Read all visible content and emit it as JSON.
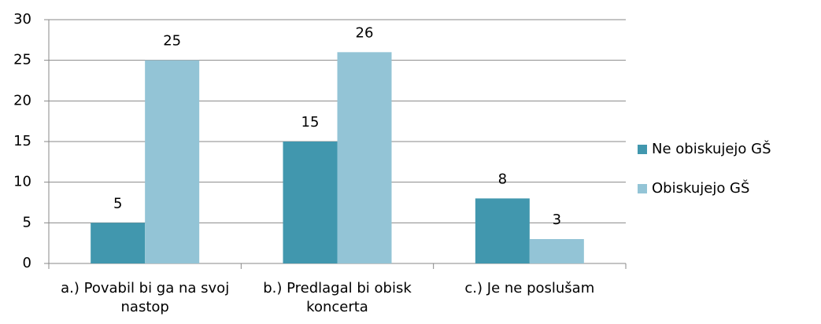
{
  "chart_data": {
    "type": "bar",
    "categories": [
      "a.) Povabil bi ga na svoj nastop",
      "b.) Predlagal bi obisk koncerta",
      "c.) Je ne poslušam"
    ],
    "series": [
      {
        "name": "Ne obiskujejo GŠ",
        "color": "#4197ae",
        "values": [
          5,
          15,
          8
        ]
      },
      {
        "name": "Obiskujejo GŠ",
        "color": "#93c4d6",
        "values": [
          25,
          26,
          3
        ]
      }
    ],
    "ylim": [
      0,
      30
    ],
    "yticks": [
      0,
      5,
      10,
      15,
      20,
      25,
      30
    ],
    "grid": true,
    "legend": "right"
  }
}
